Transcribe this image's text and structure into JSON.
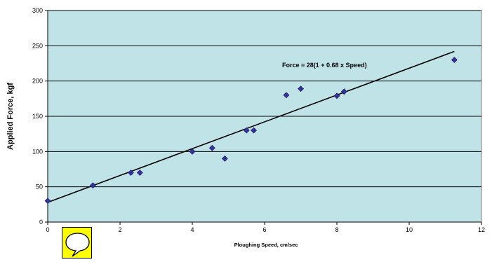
{
  "chart_data": {
    "type": "scatter",
    "title": "",
    "xlabel": "Ploughing Speed, cm/sec",
    "ylabel": "Applied Force, kgf",
    "xlim": [
      0,
      12
    ],
    "ylim": [
      0,
      300
    ],
    "x_ticks": [
      "0",
      "2",
      "4",
      "6",
      "8",
      "10",
      "12"
    ],
    "y_ticks": [
      "0",
      "50",
      "100",
      "150",
      "200",
      "250",
      "300"
    ],
    "grid": "horizontal",
    "plot_background": "#bfe3e6",
    "marker_color": "#333399",
    "line_color": "#000000",
    "series": [
      {
        "marker": "diamond",
        "points": [
          [
            0,
            30
          ],
          [
            1.25,
            52
          ],
          [
            2.3,
            70
          ],
          [
            2.55,
            70
          ],
          [
            4.0,
            100
          ],
          [
            4.55,
            105
          ],
          [
            4.9,
            90
          ],
          [
            5.5,
            130
          ],
          [
            5.7,
            130
          ],
          [
            6.6,
            180
          ],
          [
            7.0,
            189
          ],
          [
            8.0,
            179
          ],
          [
            8.2,
            185
          ],
          [
            11.25,
            230
          ]
        ]
      }
    ],
    "trendline": {
      "from": [
        0,
        28
      ],
      "to": [
        11.25,
        242
      ],
      "label": "Force = 28(1 + 0.68 x Speed)"
    }
  },
  "comment_icon": "speech-bubble-icon"
}
